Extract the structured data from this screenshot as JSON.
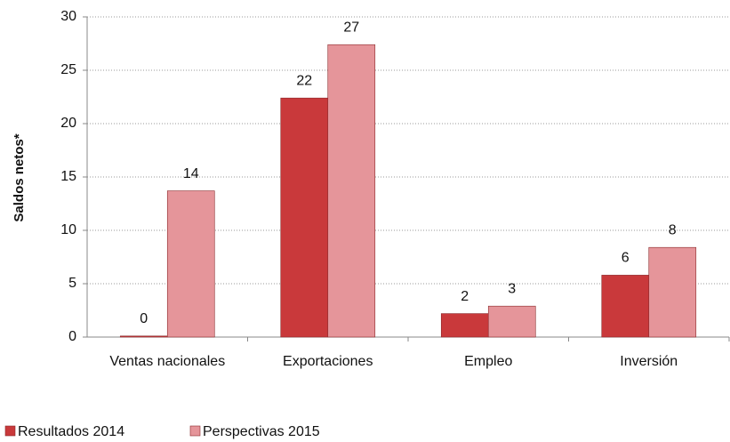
{
  "chart_data": {
    "type": "bar",
    "y_label": "Saldos netos*",
    "categories": [
      "Ventas nacionales",
      "Exportaciones",
      "Empleo",
      "Inversión"
    ],
    "series": [
      {
        "name": "Resultados 2014",
        "color": "#c9393b",
        "values": [
          0.1,
          22.4,
          2.2,
          5.8
        ],
        "value_labels": [
          "0",
          "22",
          "2",
          "6"
        ]
      },
      {
        "name": "Perspectivas 2015",
        "color": "#e5959a",
        "values": [
          13.7,
          27.4,
          2.9,
          8.4
        ],
        "value_labels": [
          "14",
          "27",
          "3",
          "8"
        ]
      }
    ],
    "ylim": [
      0,
      30
    ],
    "yticks": [
      0,
      5,
      10,
      15,
      20,
      25,
      30
    ],
    "grid": true,
    "legend": "bottom-left"
  }
}
